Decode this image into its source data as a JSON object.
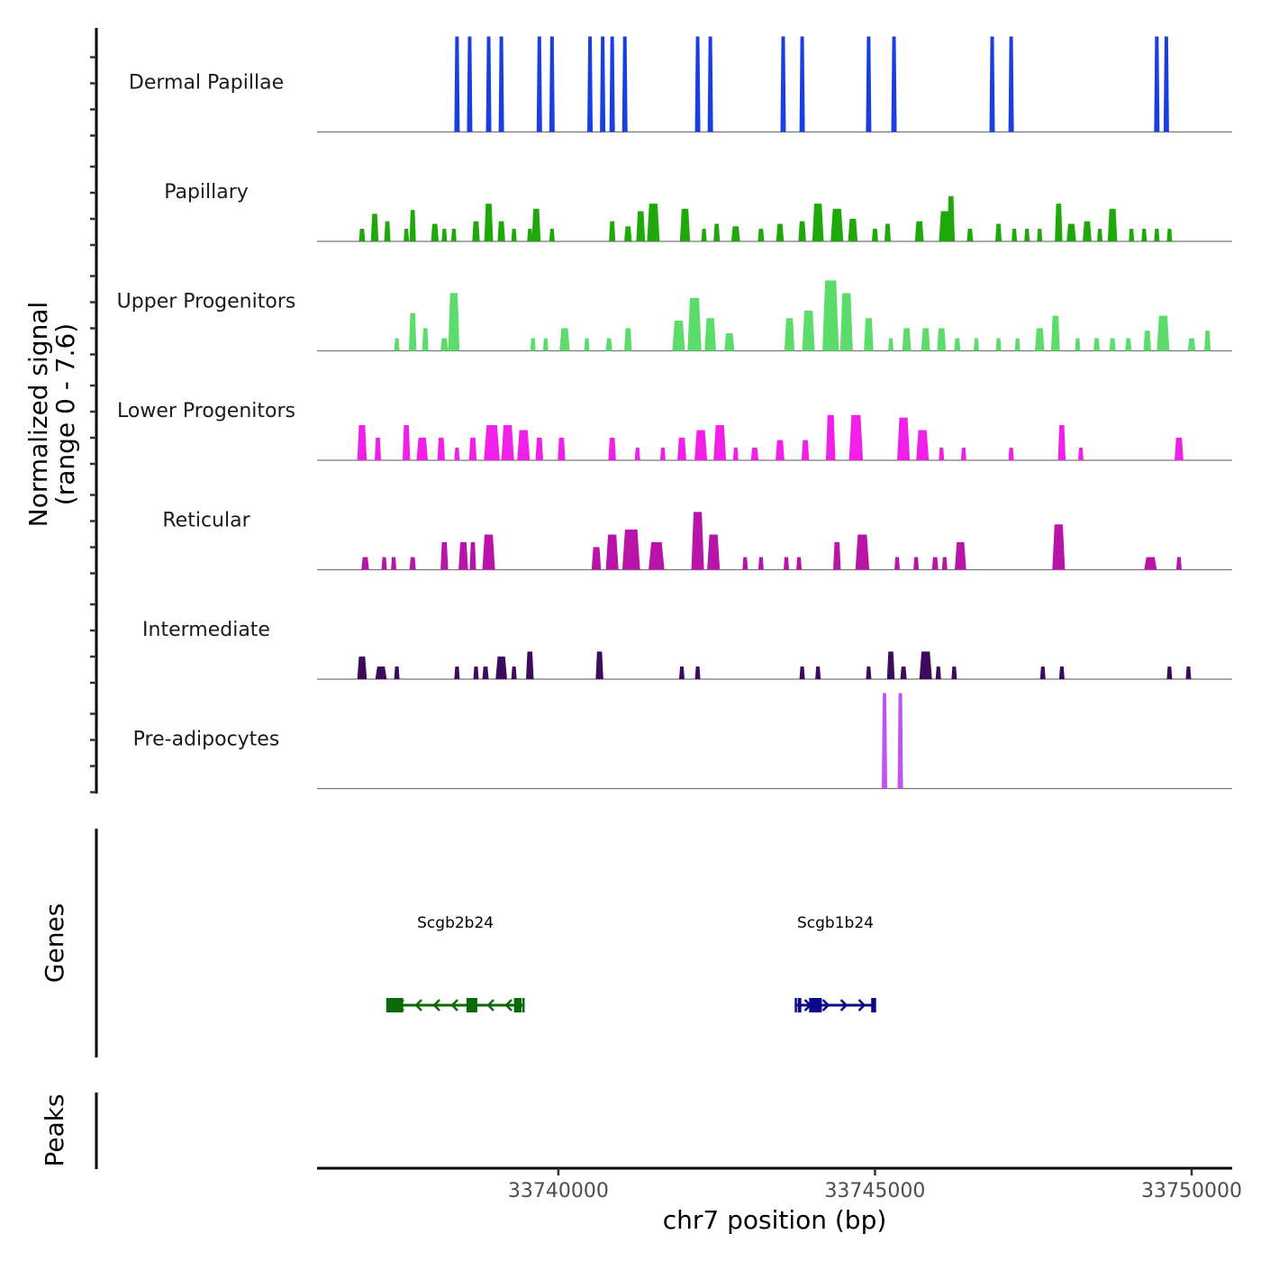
{
  "chart_data": {
    "type": "area",
    "title": "",
    "xlabel": "chr7 position (bp)",
    "ylabel": "Normalized signal\n(range 0 - 7.6)",
    "ylabel_lines": [
      "Normalized signal",
      "(range 0 - 7.6)"
    ],
    "ylim": [
      0,
      7.6
    ],
    "xlim": [
      33736190,
      33750640
    ],
    "x_ticks": [
      33740000,
      33745000,
      33750000
    ],
    "x_tick_labels": [
      "33740000",
      "33745000",
      "33750000"
    ],
    "grid": false,
    "legend": "none",
    "tracks": [
      {
        "name": "Dermal Papillae",
        "color": "#1a3fe0",
        "peaks": [
          [
            33738400,
            7.6,
            60
          ],
          [
            33738600,
            7.6,
            60
          ],
          [
            33738900,
            7.6,
            60
          ],
          [
            33739100,
            7.6,
            60
          ],
          [
            33739700,
            7.6,
            60
          ],
          [
            33739900,
            7.6,
            60
          ],
          [
            33740500,
            7.6,
            60
          ],
          [
            33740700,
            7.6,
            60
          ],
          [
            33740850,
            7.6,
            60
          ],
          [
            33741050,
            7.6,
            60
          ],
          [
            33742200,
            7.6,
            60
          ],
          [
            33742400,
            7.6,
            60
          ],
          [
            33743550,
            7.6,
            60
          ],
          [
            33743850,
            7.6,
            60
          ],
          [
            33744900,
            7.6,
            60
          ],
          [
            33745300,
            7.6,
            60
          ],
          [
            33746850,
            7.6,
            60
          ],
          [
            33747150,
            7.6,
            60
          ],
          [
            33749450,
            7.6,
            60
          ],
          [
            33749600,
            7.6,
            60
          ]
        ]
      },
      {
        "name": "Papillary",
        "color": "#1ea80a",
        "peaks": [
          [
            33736900,
            1.0,
            100
          ],
          [
            33737100,
            2.2,
            120
          ],
          [
            33737300,
            1.6,
            100
          ],
          [
            33737600,
            1.0,
            80
          ],
          [
            33737700,
            2.5,
            100
          ],
          [
            33738050,
            1.4,
            120
          ],
          [
            33738200,
            1.0,
            80
          ],
          [
            33738350,
            1.0,
            80
          ],
          [
            33738700,
            1.6,
            120
          ],
          [
            33738900,
            3.0,
            140
          ],
          [
            33739100,
            1.6,
            120
          ],
          [
            33739300,
            1.0,
            80
          ],
          [
            33739550,
            1.0,
            80
          ],
          [
            33739650,
            2.6,
            140
          ],
          [
            33739900,
            1.0,
            80
          ],
          [
            33740850,
            1.6,
            100
          ],
          [
            33741100,
            1.2,
            120
          ],
          [
            33741300,
            2.4,
            140
          ],
          [
            33741500,
            3.0,
            200
          ],
          [
            33742000,
            2.6,
            160
          ],
          [
            33742300,
            1.0,
            80
          ],
          [
            33742500,
            1.4,
            100
          ],
          [
            33742800,
            1.2,
            140
          ],
          [
            33743200,
            1.0,
            100
          ],
          [
            33743500,
            1.4,
            120
          ],
          [
            33743850,
            1.6,
            120
          ],
          [
            33744100,
            3.0,
            180
          ],
          [
            33744400,
            2.6,
            200
          ],
          [
            33744650,
            1.8,
            150
          ],
          [
            33745000,
            1.0,
            100
          ],
          [
            33745200,
            1.4,
            100
          ],
          [
            33745700,
            1.6,
            140
          ],
          [
            33746100,
            2.4,
            180
          ],
          [
            33746200,
            3.6,
            120
          ],
          [
            33746500,
            1.0,
            100
          ],
          [
            33746950,
            1.4,
            100
          ],
          [
            33747200,
            1.0,
            80
          ],
          [
            33747400,
            1.0,
            80
          ],
          [
            33747600,
            1.0,
            80
          ],
          [
            33747900,
            3.0,
            120
          ],
          [
            33748100,
            1.4,
            150
          ],
          [
            33748350,
            1.6,
            140
          ],
          [
            33748550,
            1.0,
            80
          ],
          [
            33748750,
            2.6,
            150
          ],
          [
            33749050,
            1.0,
            80
          ],
          [
            33749250,
            1.0,
            80
          ],
          [
            33749450,
            1.0,
            80
          ],
          [
            33749650,
            1.0,
            80
          ]
        ]
      },
      {
        "name": "Upper Progenitors",
        "color": "#5cdc6a",
        "peaks": [
          [
            33737450,
            1.0,
            80
          ],
          [
            33737700,
            3.0,
            120
          ],
          [
            33737900,
            1.8,
            100
          ],
          [
            33738200,
            1.0,
            120
          ],
          [
            33738350,
            4.6,
            180
          ],
          [
            33739600,
            1.0,
            80
          ],
          [
            33739800,
            1.0,
            80
          ],
          [
            33740100,
            1.8,
            160
          ],
          [
            33740450,
            1.0,
            80
          ],
          [
            33740800,
            1.0,
            100
          ],
          [
            33741100,
            1.8,
            120
          ],
          [
            33741900,
            2.4,
            200
          ],
          [
            33742150,
            4.2,
            220
          ],
          [
            33742400,
            2.6,
            180
          ],
          [
            33742700,
            1.4,
            160
          ],
          [
            33743650,
            2.6,
            160
          ],
          [
            33743950,
            3.2,
            200
          ],
          [
            33744300,
            5.6,
            260
          ],
          [
            33744550,
            4.6,
            200
          ],
          [
            33744900,
            2.6,
            150
          ],
          [
            33745250,
            1.0,
            80
          ],
          [
            33745500,
            1.8,
            140
          ],
          [
            33745800,
            1.8,
            140
          ],
          [
            33746050,
            1.8,
            140
          ],
          [
            33746300,
            1.0,
            100
          ],
          [
            33746600,
            1.0,
            80
          ],
          [
            33746950,
            1.0,
            80
          ],
          [
            33747250,
            1.0,
            80
          ],
          [
            33747600,
            1.8,
            150
          ],
          [
            33747850,
            2.8,
            140
          ],
          [
            33748200,
            1.0,
            80
          ],
          [
            33748500,
            1.0,
            100
          ],
          [
            33748750,
            1.0,
            100
          ],
          [
            33749000,
            1.0,
            100
          ],
          [
            33749300,
            1.6,
            120
          ],
          [
            33749550,
            2.8,
            200
          ],
          [
            33750000,
            1.0,
            120
          ],
          [
            33750250,
            1.6,
            100
          ]
        ]
      },
      {
        "name": "Lower Progenitors",
        "color": "#f020e8",
        "peaks": [
          [
            33736900,
            2.8,
            150
          ],
          [
            33737150,
            1.8,
            100
          ],
          [
            33737600,
            2.8,
            120
          ],
          [
            33737850,
            1.8,
            180
          ],
          [
            33738150,
            1.8,
            120
          ],
          [
            33738400,
            1.0,
            80
          ],
          [
            33738650,
            1.8,
            120
          ],
          [
            33738950,
            2.8,
            250
          ],
          [
            33739200,
            2.8,
            200
          ],
          [
            33739450,
            2.4,
            200
          ],
          [
            33739700,
            1.8,
            120
          ],
          [
            33740050,
            1.8,
            120
          ],
          [
            33740850,
            1.8,
            120
          ],
          [
            33741250,
            1.0,
            80
          ],
          [
            33741650,
            1.0,
            80
          ],
          [
            33741950,
            1.8,
            140
          ],
          [
            33742250,
            2.4,
            200
          ],
          [
            33742550,
            2.8,
            200
          ],
          [
            33742800,
            1.0,
            80
          ],
          [
            33743100,
            1.0,
            120
          ],
          [
            33743500,
            1.6,
            140
          ],
          [
            33743900,
            1.6,
            120
          ],
          [
            33744300,
            3.6,
            150
          ],
          [
            33744700,
            3.6,
            220
          ],
          [
            33745450,
            3.4,
            200
          ],
          [
            33745750,
            2.4,
            200
          ],
          [
            33746050,
            1.0,
            80
          ],
          [
            33746400,
            1.0,
            80
          ],
          [
            33747150,
            1.0,
            80
          ],
          [
            33747950,
            2.8,
            120
          ],
          [
            33748250,
            1.0,
            80
          ],
          [
            33749800,
            1.8,
            140
          ]
        ]
      },
      {
        "name": "Reticular",
        "color": "#b814a8",
        "peaks": [
          [
            33736950,
            1.0,
            120
          ],
          [
            33737250,
            1.0,
            80
          ],
          [
            33737400,
            1.0,
            80
          ],
          [
            33737700,
            1.0,
            100
          ],
          [
            33738200,
            2.2,
            120
          ],
          [
            33738500,
            2.2,
            150
          ],
          [
            33738650,
            2.2,
            100
          ],
          [
            33738900,
            2.8,
            200
          ],
          [
            33740600,
            1.8,
            150
          ],
          [
            33740850,
            2.8,
            200
          ],
          [
            33741150,
            3.2,
            280
          ],
          [
            33741550,
            2.2,
            250
          ],
          [
            33742200,
            4.6,
            200
          ],
          [
            33742450,
            2.8,
            200
          ],
          [
            33742950,
            1.0,
            80
          ],
          [
            33743200,
            1.0,
            80
          ],
          [
            33743600,
            1.0,
            80
          ],
          [
            33743800,
            1.0,
            80
          ],
          [
            33744400,
            2.2,
            120
          ],
          [
            33744800,
            2.8,
            220
          ],
          [
            33745350,
            1.0,
            80
          ],
          [
            33745650,
            1.0,
            80
          ],
          [
            33745950,
            1.0,
            100
          ],
          [
            33746100,
            1.0,
            80
          ],
          [
            33746350,
            2.2,
            180
          ],
          [
            33747900,
            3.6,
            200
          ],
          [
            33749350,
            1.0,
            200
          ],
          [
            33749800,
            1.0,
            80
          ]
        ]
      },
      {
        "name": "Intermediate",
        "color": "#3e0a5e",
        "peaks": [
          [
            33736900,
            1.8,
            150
          ],
          [
            33737200,
            1.0,
            180
          ],
          [
            33737450,
            1.0,
            80
          ],
          [
            33738400,
            1.0,
            80
          ],
          [
            33738700,
            1.0,
            80
          ],
          [
            33738850,
            1.0,
            100
          ],
          [
            33739100,
            1.8,
            180
          ],
          [
            33739300,
            1.0,
            80
          ],
          [
            33739550,
            2.2,
            120
          ],
          [
            33740650,
            2.2,
            120
          ],
          [
            33741950,
            1.0,
            80
          ],
          [
            33742200,
            1.0,
            80
          ],
          [
            33743850,
            1.0,
            80
          ],
          [
            33744100,
            1.0,
            80
          ],
          [
            33744900,
            1.0,
            80
          ],
          [
            33745250,
            2.2,
            120
          ],
          [
            33745450,
            1.0,
            100
          ],
          [
            33745800,
            2.2,
            200
          ],
          [
            33746000,
            1.0,
            80
          ],
          [
            33746250,
            1.0,
            80
          ],
          [
            33747650,
            1.0,
            80
          ],
          [
            33747950,
            1.0,
            80
          ],
          [
            33749650,
            1.0,
            80
          ],
          [
            33749950,
            1.0,
            80
          ]
        ]
      },
      {
        "name": "Pre-adipocytes",
        "color": "#bf55f0",
        "peaks": [
          [
            33745150,
            7.6,
            80
          ],
          [
            33745400,
            7.6,
            80
          ]
        ]
      }
    ],
    "genes": {
      "panel_title": "Genes",
      "items": [
        {
          "name": "Scgb2b24",
          "strand": "-",
          "start": 33737300,
          "end": 33739450,
          "color": "#0a6a0a",
          "exons": [
            [
              33737300,
              33737550
            ],
            [
              33738550,
              33738720
            ],
            [
              33739300,
              33739420
            ]
          ]
        },
        {
          "name": "Scgb1b24",
          "strand": "+",
          "start": 33743750,
          "end": 33745000,
          "color": "#0a0a8a",
          "exons": [
            [
              33743780,
              33743830
            ],
            [
              33743960,
              33744160
            ],
            [
              33744940,
              33744990
            ]
          ]
        }
      ]
    },
    "peaks_panel": {
      "panel_title": "Peaks",
      "items": []
    }
  }
}
